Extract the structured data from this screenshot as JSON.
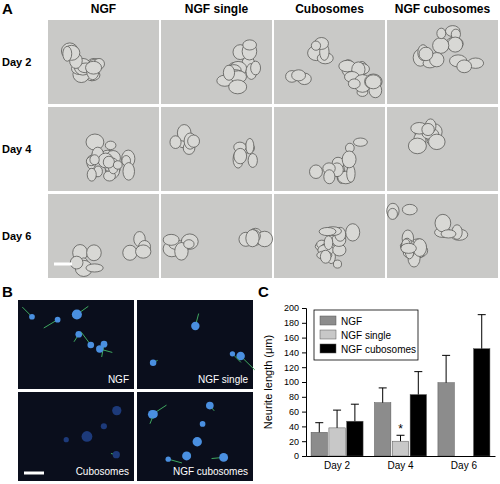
{
  "panels": {
    "a": {
      "label": "A",
      "columns": [
        "NGF",
        "NGF single",
        "Cubosomes",
        "NGF cubosomes"
      ],
      "rows": [
        "Day 2",
        "Day 4",
        "Day 6"
      ]
    },
    "b": {
      "label": "B",
      "images": [
        "NGF",
        "NGF single",
        "Cubosomes",
        "NGF cubosomes"
      ]
    },
    "c": {
      "label": "C"
    }
  },
  "chart_data": {
    "type": "bar",
    "y_label": "Neurite length (μm)",
    "categories": [
      "Day 2",
      "Day 4",
      "Day 6"
    ],
    "series": [
      {
        "name": "NGF",
        "color": "#8c8c8c",
        "values": [
          32,
          72,
          99
        ],
        "errors": [
          13,
          20,
          37
        ]
      },
      {
        "name": "NGF single",
        "color": "#c8c8c8",
        "values": [
          38,
          20,
          null
        ],
        "errors": [
          24,
          8,
          null
        ],
        "annotations": [
          null,
          "*",
          null
        ]
      },
      {
        "name": "NGF cubosomes",
        "color": "#000000",
        "values": [
          47,
          83,
          145
        ],
        "errors": [
          23,
          31,
          46
        ]
      }
    ],
    "ylim": [
      0,
      200
    ],
    "yticks": [
      0,
      20,
      40,
      60,
      80,
      100,
      120,
      140,
      160,
      180,
      200
    ],
    "legend": "upper left",
    "grid": false
  }
}
